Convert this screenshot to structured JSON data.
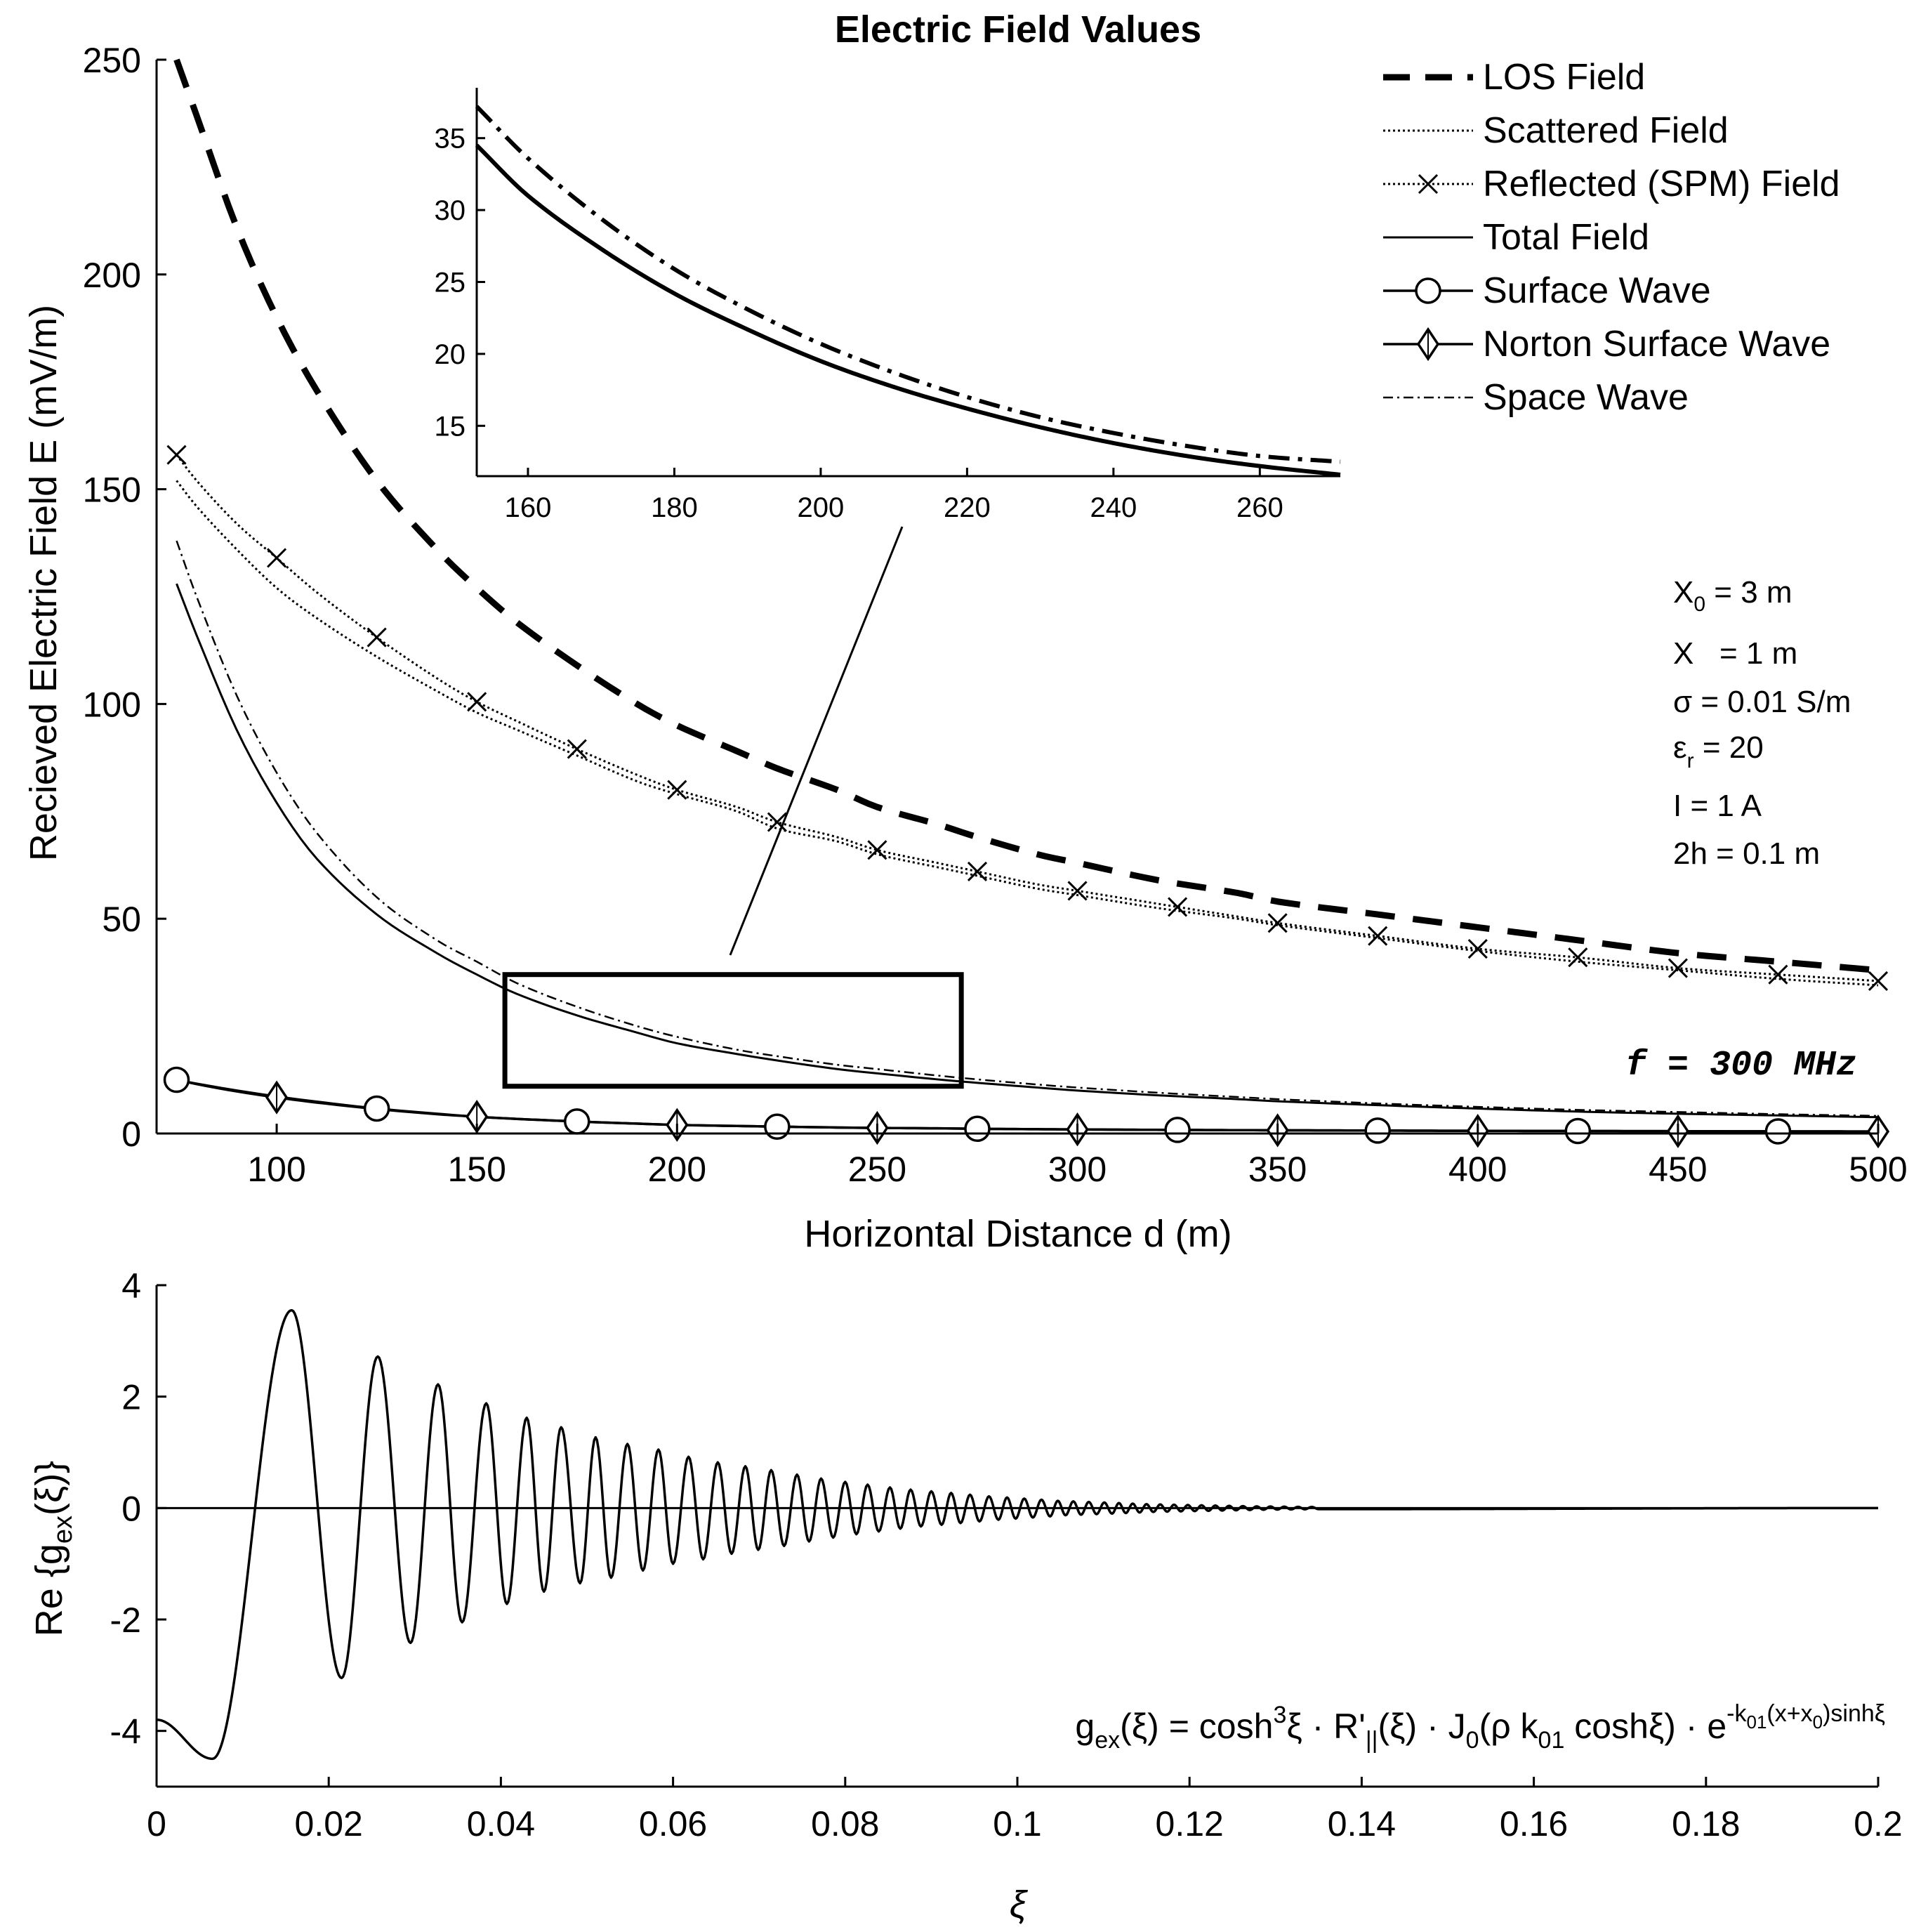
{
  "colors": {
    "ink": "#000000",
    "background": "#ffffff"
  },
  "chart_data": [
    {
      "id": "main",
      "type": "line",
      "title": "Electric Field Values",
      "xlabel": "Horizontal Distance  d (m)",
      "ylabel": "Recieved Electric Field  E (mV/m)",
      "xlim": [
        70,
        500
      ],
      "ylim": [
        0,
        250
      ],
      "xticks": [
        100,
        150,
        200,
        250,
        300,
        350,
        400,
        450,
        500
      ],
      "yticks": [
        0,
        50,
        100,
        150,
        200,
        250
      ],
      "grid": false,
      "legend_position": "top-right",
      "x": [
        75,
        80,
        90,
        100,
        110,
        125,
        140,
        150,
        160,
        175,
        190,
        200,
        215,
        225,
        240,
        250,
        265,
        275,
        290,
        300,
        320,
        340,
        350,
        375,
        400,
        425,
        450,
        475,
        500
      ],
      "series": [
        {
          "name": "LOS Field",
          "style": "dashed-thick",
          "values": [
            250,
            237,
            211,
            190,
            173,
            152,
            136,
            127,
            119,
            109,
            100,
            95,
            89,
            85,
            80,
            76,
            72,
            69,
            65,
            63,
            59,
            56,
            54,
            51,
            48,
            45,
            42,
            40,
            38
          ]
        },
        {
          "name": "Scattered Field",
          "style": "dotted",
          "values": [
            152,
            146,
            136,
            127,
            120,
            111,
            103,
            98,
            94,
            88,
            82,
            79,
            75,
            71,
            68,
            65,
            62,
            60,
            57,
            55.5,
            52.5,
            50,
            48.5,
            45.5,
            42.5,
            40,
            38,
            36,
            34.5
          ]
        },
        {
          "name": "Reflected (SPM) Field",
          "style": "dotted-x",
          "values": [
            158,
            152,
            142,
            134,
            126,
            115.5,
            106,
            100.5,
            96,
            89.5,
            83.5,
            80,
            76,
            72.5,
            69,
            66,
            63,
            61,
            58,
            56.5,
            53.5,
            50.5,
            49,
            46,
            43,
            41,
            38.5,
            37,
            35.5
          ]
        },
        {
          "name": "Total Field",
          "style": "solid",
          "values": [
            128,
            116,
            94,
            77,
            64,
            51,
            42,
            37,
            32.5,
            27.5,
            23.5,
            21,
            18.5,
            17,
            15,
            14,
            12.6,
            11.8,
            10.7,
            10,
            8.9,
            8,
            7.5,
            6.6,
            5.8,
            5.1,
            4.6,
            4.2,
            3.8
          ]
        },
        {
          "name": "Surface Wave",
          "style": "solid-circle",
          "values": [
            12.5,
            11.6,
            10,
            8.6,
            7.4,
            5.8,
            4.6,
            3.9,
            3.4,
            2.8,
            2.3,
            2.0,
            1.75,
            1.6,
            1.4,
            1.3,
            1.2,
            1.1,
            1.0,
            0.95,
            0.85,
            0.78,
            0.75,
            0.68,
            0.62,
            0.58,
            0.54,
            0.5,
            0.47
          ]
        },
        {
          "name": "Norton Surface Wave",
          "style": "solid-diamond",
          "values": [
            12.5,
            11.5,
            9.8,
            8.4,
            7.2,
            5.7,
            4.5,
            3.9,
            3.4,
            2.8,
            2.3,
            2.0,
            1.75,
            1.6,
            1.4,
            1.3,
            1.2,
            1.1,
            1.0,
            0.95,
            0.85,
            0.78,
            0.75,
            0.68,
            0.62,
            0.58,
            0.54,
            0.5,
            0.47
          ]
        },
        {
          "name": "Space Wave",
          "style": "dashdot-thin",
          "values": [
            138,
            125,
            102,
            84,
            70,
            55,
            45,
            40,
            35,
            29.5,
            25,
            22.5,
            19.5,
            18,
            16,
            15,
            13.5,
            12.6,
            11.4,
            10.7,
            9.5,
            8.5,
            8,
            7,
            6.2,
            5.5,
            5,
            4.5,
            4.1
          ]
        }
      ],
      "zoom_box": {
        "x": [
          157,
          271
        ],
        "y": [
          11,
          37
        ]
      },
      "annotations": {
        "params": [
          "X",
          "0",
          " = 3 m",
          "X   = 1 m",
          "σ = 0.01 S/m",
          "ε",
          "r",
          " = 20",
          "I = 1 A",
          "2h = 0.1 m"
        ],
        "frequency": "f = 300 MHz"
      }
    },
    {
      "id": "inset",
      "type": "line",
      "xlim": [
        153,
        271
      ],
      "ylim": [
        11.5,
        38.5
      ],
      "xticks": [
        160,
        180,
        200,
        220,
        240,
        260
      ],
      "yticks": [
        15,
        20,
        25,
        30,
        35
      ],
      "x": [
        153,
        160,
        170,
        180,
        190,
        200,
        210,
        220,
        230,
        240,
        250,
        260,
        271
      ],
      "series": [
        {
          "name": "Space Wave",
          "style": "dashdot-thick",
          "values": [
            37.2,
            33.6,
            29.4,
            25.9,
            23.1,
            20.7,
            18.7,
            17.0,
            15.6,
            14.5,
            13.6,
            12.9,
            12.5
          ]
        },
        {
          "name": "Total Field",
          "style": "solid-thick",
          "values": [
            34.5,
            31.0,
            27.3,
            24.2,
            21.7,
            19.5,
            17.7,
            16.2,
            14.9,
            13.8,
            12.9,
            12.2,
            11.6
          ]
        }
      ]
    },
    {
      "id": "lower",
      "type": "line",
      "xlabel": "ξ",
      "ylabel": "Re {g",
      "ylabel_sub": "ex",
      "ylabel_end": "(ξ)}",
      "xlim": [
        0,
        0.2
      ],
      "ylim": [
        -5,
        4
      ],
      "xticks": [
        0,
        0.02,
        0.04,
        0.06,
        0.08,
        0.1,
        0.12,
        0.14,
        0.16,
        0.18,
        0.2
      ],
      "xticklabels": [
        "0",
        "0.02",
        "0.04",
        "0.06",
        "0.08",
        "0.1",
        "0.12",
        "0.14",
        "0.16",
        "0.18",
        "0.2"
      ],
      "yticks": [
        -4,
        -2,
        0,
        2,
        4
      ],
      "series": [
        {
          "name": "Re{gex(ξ)}",
          "style": "solid",
          "extrema": [
            [
              0,
              -3.8
            ],
            [
              0.0065,
              -4.5
            ],
            [
              0.0157,
              3.55
            ],
            [
              0.0215,
              -3.05
            ],
            [
              0.0257,
              2.72
            ],
            [
              0.0295,
              -2.42
            ],
            [
              0.0327,
              2.22
            ],
            [
              0.0355,
              -2.05
            ],
            [
              0.0383,
              1.88
            ],
            [
              0.0407,
              -1.72
            ],
            [
              0.043,
              1.62
            ],
            [
              0.045,
              -1.5
            ],
            [
              0.047,
              1.45
            ],
            [
              0.0492,
              -1.35
            ],
            [
              0.051,
              1.27
            ],
            [
              0.0528,
              -1.25
            ],
            [
              0.0547,
              1.15
            ],
            [
              0.0565,
              -1.12
            ],
            [
              0.0583,
              1.05
            ],
            [
              0.06,
              -1.0
            ],
            [
              0.0618,
              0.92
            ],
            [
              0.0635,
              -0.92
            ],
            [
              0.0652,
              0.82
            ],
            [
              0.0668,
              -0.82
            ],
            [
              0.0684,
              0.75
            ],
            [
              0.0699,
              -0.75
            ],
            [
              0.0714,
              0.68
            ],
            [
              0.0729,
              -0.68
            ],
            [
              0.0744,
              0.6
            ],
            [
              0.0758,
              -0.6
            ],
            [
              0.0772,
              0.53
            ],
            [
              0.0786,
              -0.53
            ],
            [
              0.08,
              0.47
            ],
            [
              0.0813,
              -0.47
            ],
            [
              0.0826,
              0.42
            ],
            [
              0.0839,
              -0.42
            ],
            [
              0.0852,
              0.37
            ],
            [
              0.0864,
              -0.37
            ],
            [
              0.0876,
              0.33
            ],
            [
              0.0888,
              -0.33
            ],
            [
              0.09,
              0.3
            ],
            [
              0.0912,
              -0.3
            ],
            [
              0.0923,
              0.27
            ],
            [
              0.0934,
              -0.27
            ],
            [
              0.0945,
              0.24
            ],
            [
              0.0956,
              -0.24
            ],
            [
              0.0967,
              0.21
            ],
            [
              0.0978,
              -0.21
            ],
            [
              0.0988,
              0.19
            ],
            [
              0.0998,
              -0.19
            ],
            [
              0.1008,
              0.17
            ],
            [
              0.1018,
              -0.17
            ],
            [
              0.1028,
              0.15
            ],
            [
              0.1038,
              -0.15
            ],
            [
              0.1047,
              0.13
            ],
            [
              0.1056,
              -0.13
            ],
            [
              0.1065,
              0.12
            ],
            [
              0.1074,
              -0.12
            ],
            [
              0.1083,
              0.11
            ],
            [
              0.1092,
              -0.11
            ],
            [
              0.1101,
              0.1
            ],
            [
              0.111,
              -0.1
            ],
            [
              0.1118,
              0.09
            ],
            [
              0.1126,
              -0.09
            ],
            [
              0.1134,
              0.08
            ],
            [
              0.1142,
              -0.08
            ],
            [
              0.115,
              0.07
            ],
            [
              0.1158,
              -0.07
            ],
            [
              0.1166,
              0.065
            ],
            [
              0.1174,
              -0.065
            ],
            [
              0.1182,
              0.06
            ],
            [
              0.119,
              -0.06
            ],
            [
              0.1198,
              0.055
            ],
            [
              0.1206,
              -0.055
            ],
            [
              0.1214,
              0.05
            ],
            [
              0.1222,
              -0.05
            ],
            [
              0.123,
              0.045
            ],
            [
              0.1238,
              -0.045
            ],
            [
              0.1246,
              0.04
            ],
            [
              0.1254,
              -0.04
            ],
            [
              0.1262,
              0.035
            ],
            [
              0.127,
              -0.035
            ],
            [
              0.1278,
              0.03
            ],
            [
              0.1286,
              -0.03
            ],
            [
              0.1294,
              0.028
            ],
            [
              0.1302,
              -0.028
            ],
            [
              0.131,
              0.025
            ],
            [
              0.1318,
              -0.025
            ],
            [
              0.1326,
              0.022
            ],
            [
              0.1334,
              -0.022
            ],
            [
              0.1342,
              0.02
            ],
            [
              0.135,
              -0.02
            ],
            [
              0.2,
              0
            ]
          ]
        }
      ],
      "formula": {
        "parts": [
          "g",
          "ex",
          "(ξ) = cosh",
          "3",
          "ξ · R'",
          "||",
          "(ξ) · J",
          "0",
          "(ρ k",
          "01",
          " coshξ) · e",
          "-k",
          "01",
          "(x+x",
          "0",
          ")sinhξ"
        ]
      }
    }
  ]
}
